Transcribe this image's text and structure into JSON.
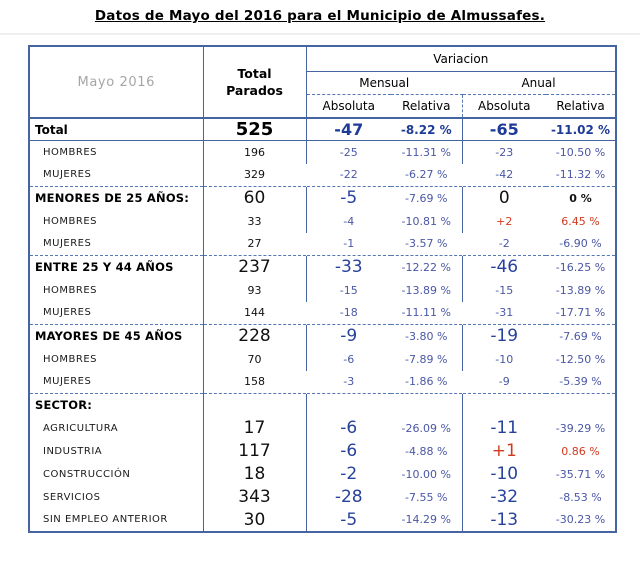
{
  "title": "Datos de Mayo del 2016 para el Municipio de Almussafes.",
  "colors": {
    "border-blue": "#46649f",
    "dash-blue": "#5577b4",
    "navy": "#1e3b97",
    "navy-soft": "#4a57a6",
    "red": "#d03b20",
    "ink": "#111111",
    "gray": "#a6a6a6"
  },
  "table": {
    "header": {
      "period": "Mayo 2016",
      "total_line1": "Total",
      "total_line2": "Parados",
      "variation": "Variacion",
      "monthly": "Mensual",
      "annual": "Anual",
      "absolute": "Absoluta",
      "relative": "Relativa"
    },
    "rows": [
      {
        "type": "total",
        "label": "Total",
        "total": "525",
        "m_abs": "-47",
        "m_rel": "-8.22 %",
        "a_abs": "-65",
        "a_rel": "-11.02 %"
      },
      {
        "type": "sub",
        "label": "HOMBRES",
        "total": "196",
        "m_abs": "-25",
        "m_rel": "-11.31 %",
        "a_abs": "-23",
        "a_rel": "-10.50 %"
      },
      {
        "type": "sub",
        "no_div": true,
        "label": "MUJERES",
        "total": "329",
        "m_abs": "-22",
        "m_rel": "-6.27 %",
        "a_abs": "-42",
        "a_rel": "-11.32 %"
      },
      {
        "type": "section",
        "dash_top": true,
        "label": "MENORES DE 25 AÑOS:",
        "total": "60",
        "m_abs": "-5",
        "m_rel": "-7.69 %",
        "a_abs": "0",
        "a_rel": "0 %",
        "colors": {
          "a_abs": "black",
          "a_rel": "black"
        }
      },
      {
        "type": "sub",
        "label": "HOMBRES",
        "total": "33",
        "m_abs": "-4",
        "m_rel": "-10.81 %",
        "a_abs": "+2",
        "a_rel": "6.45 %",
        "colors": {
          "a_abs": "red",
          "a_rel": "red"
        }
      },
      {
        "type": "sub",
        "no_div": true,
        "label": "MUJERES",
        "total": "27",
        "m_abs": "-1",
        "m_rel": "-3.57 %",
        "a_abs": "-2",
        "a_rel": "-6.90 %"
      },
      {
        "type": "section",
        "dash_top": true,
        "label": "ENTRE 25 Y 44 AÑOS",
        "total": "237",
        "m_abs": "-33",
        "m_rel": "-12.22 %",
        "a_abs": "-46",
        "a_rel": "-16.25 %"
      },
      {
        "type": "sub",
        "label": "HOMBRES",
        "total": "93",
        "m_abs": "-15",
        "m_rel": "-13.89 %",
        "a_abs": "-15",
        "a_rel": "-13.89 %"
      },
      {
        "type": "sub",
        "no_div": true,
        "label": "MUJERES",
        "total": "144",
        "m_abs": "-18",
        "m_rel": "-11.11 %",
        "a_abs": "-31",
        "a_rel": "-17.71 %"
      },
      {
        "type": "section",
        "dash_top": true,
        "label": "MAYORES DE 45 AÑOS",
        "total": "228",
        "m_abs": "-9",
        "m_rel": "-3.80 %",
        "a_abs": "-19",
        "a_rel": "-7.69 %"
      },
      {
        "type": "sub",
        "label": "HOMBRES",
        "total": "70",
        "m_abs": "-6",
        "m_rel": "-7.89 %",
        "a_abs": "-10",
        "a_rel": "-12.50 %"
      },
      {
        "type": "sub",
        "no_div": true,
        "label": "MUJERES",
        "total": "158",
        "m_abs": "-3",
        "m_rel": "-1.86 %",
        "a_abs": "-9",
        "a_rel": "-5.39 %"
      },
      {
        "type": "labelonly",
        "dash_top": true,
        "label": "SECTOR:",
        "total": "",
        "m_abs": "",
        "m_rel": "",
        "a_abs": "",
        "a_rel": ""
      },
      {
        "type": "sector",
        "label": "AGRICULTURA",
        "total": "17",
        "m_abs": "-6",
        "m_rel": "-26.09 %",
        "a_abs": "-11",
        "a_rel": "-39.29 %"
      },
      {
        "type": "sector",
        "label": "INDUSTRIA",
        "total": "117",
        "m_abs": "-6",
        "m_rel": "-4.88 %",
        "a_abs": "+1",
        "a_rel": "0.86 %",
        "colors": {
          "a_abs": "red",
          "a_rel": "red"
        }
      },
      {
        "type": "sector",
        "label": "CONSTRUCCIÓN",
        "total": "18",
        "m_abs": "-2",
        "m_rel": "-10.00 %",
        "a_abs": "-10",
        "a_rel": "-35.71 %"
      },
      {
        "type": "sector",
        "label": "SERVICIOS",
        "total": "343",
        "m_abs": "-28",
        "m_rel": "-7.55 %",
        "a_abs": "-32",
        "a_rel": "-8.53 %"
      },
      {
        "type": "sector",
        "label": "SIN EMPLEO ANTERIOR",
        "total": "30",
        "m_abs": "-5",
        "m_rel": "-14.29 %",
        "a_abs": "-13",
        "a_rel": "-30.23 %"
      }
    ]
  }
}
